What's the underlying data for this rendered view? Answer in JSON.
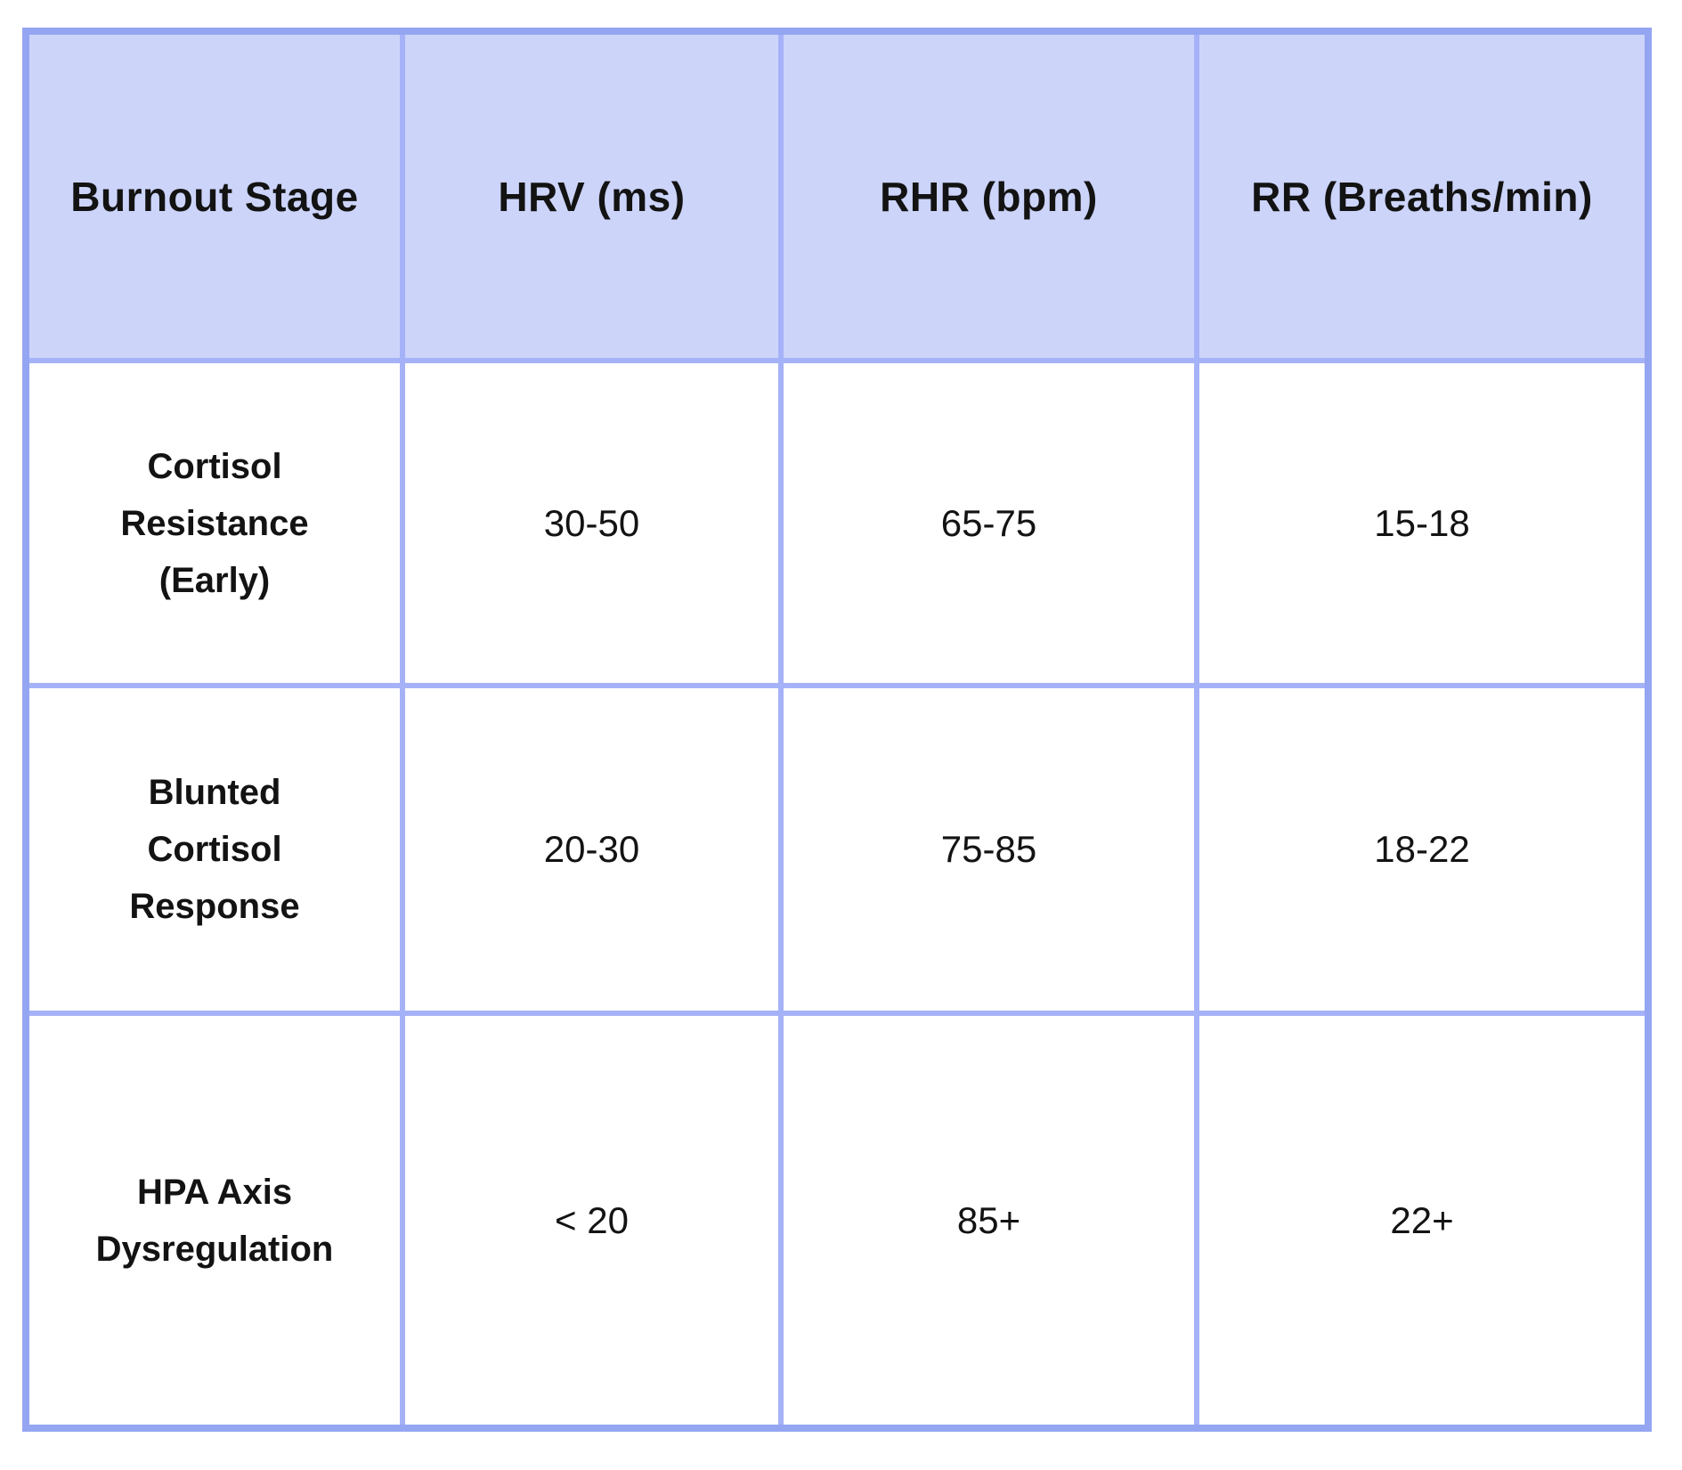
{
  "colors": {
    "outer_border": "#94a5f2",
    "grid_line": "#a6b2f7",
    "header_bg": "#ccd4fa",
    "cell_bg": "#ffffff",
    "text": "#131313"
  },
  "chart_data": {
    "type": "table",
    "columns": [
      "Burnout Stage",
      "HRV (ms)",
      "RHR (bpm)",
      "RR (Breaths/min)"
    ],
    "rows": [
      {
        "stage": "Cortisol Resistance (Early)",
        "hrv": "30-50",
        "rhr": "65-75",
        "rr": "15-18"
      },
      {
        "stage": "Blunted Cortisol Response",
        "hrv": "20-30",
        "rhr": "75-85",
        "rr": "18-22"
      },
      {
        "stage": "HPA Axis Dysregulation",
        "hrv": "< 20",
        "rhr": "85+",
        "rr": "22+"
      }
    ]
  }
}
